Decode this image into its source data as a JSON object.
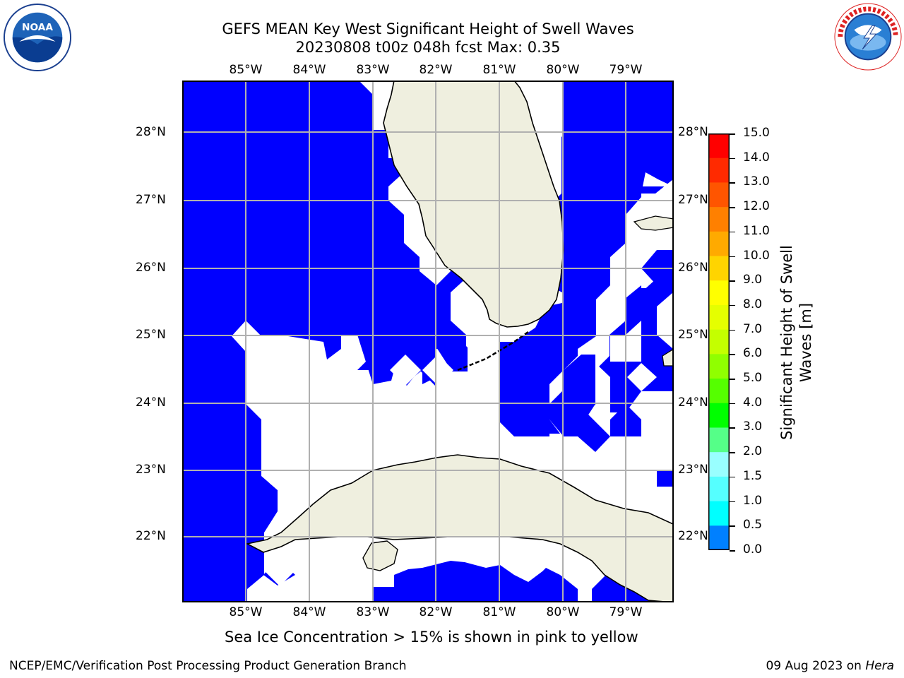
{
  "header": {
    "title_line1": "GEFS MEAN Key West Significant Height of Swell Waves",
    "title_line2": "20230808 t00z 048h fcst   Max: 0.35"
  },
  "logos": {
    "noaa": {
      "icon": "noaa-logo",
      "text": "NOAA",
      "ring_text": "NATIONAL OCEANIC AND ATMOSPHERIC ADMINISTRATION · U.S. DEPARTMENT OF COMMERCE"
    },
    "nws": {
      "icon": "nws-logo",
      "ring_text": "NATIONAL WEATHER SERVICE"
    }
  },
  "map": {
    "longitude_labels": [
      "85°W",
      "84°W",
      "83°W",
      "82°W",
      "81°W",
      "80°W",
      "79°W"
    ],
    "latitude_labels": [
      "28°N",
      "27°N",
      "26°N",
      "25°N",
      "24°N",
      "23°N",
      "22°N"
    ],
    "colors": {
      "ocean_low": "#0000ff",
      "land": "#efefdf",
      "no_data": "#ffffff",
      "grid": "#b0b0b0",
      "coast": "#000000"
    }
  },
  "colorbar": {
    "label": "Significant Height of Swell Waves [m]",
    "ticks": [
      "15.0",
      "14.0",
      "13.0",
      "12.0",
      "11.0",
      "10.0",
      "9.0",
      "8.0",
      "7.0",
      "6.0",
      "5.0",
      "4.0",
      "3.0",
      "2.0",
      "1.5",
      "1.0",
      "0.5",
      "0.0"
    ],
    "colors": [
      "#ff0000",
      "#ff2a00",
      "#ff5500",
      "#ff8000",
      "#ffaa00",
      "#ffd400",
      "#ffff00",
      "#e5ff00",
      "#c4ff00",
      "#90ff00",
      "#55ff00",
      "#00ff00",
      "#55ff88",
      "#99ffff",
      "#55ffff",
      "#00ffff",
      "#0080ff",
      "#0000ff"
    ]
  },
  "footer": {
    "note": "Sea Ice Concentration > 15% is shown in pink to yellow",
    "credit": "NCEP/EMC/Verification Post Processing Product Generation Branch",
    "date": "09 Aug 2023 on",
    "machine": "Hera"
  }
}
